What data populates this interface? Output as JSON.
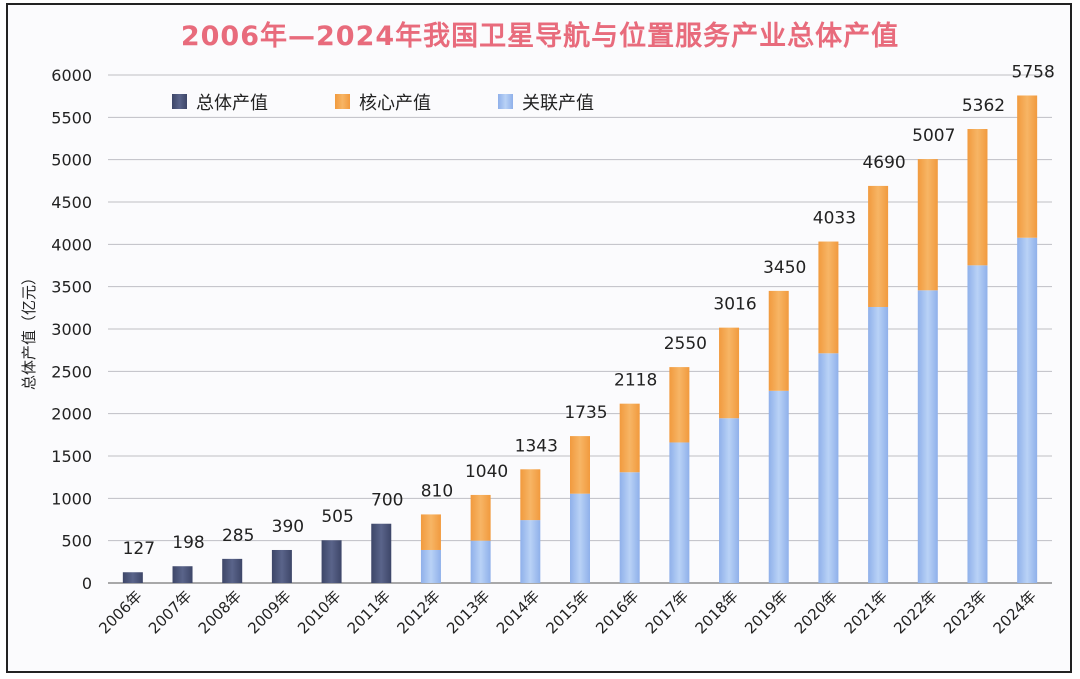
{
  "chart_data": {
    "type": "bar",
    "title": "2006年—2024年我国卫星导航与位置服务产业总体产值",
    "ylabel": "总体产值（亿元）",
    "ylim": [
      0,
      6000
    ],
    "yticks": [
      0,
      500,
      1000,
      1500,
      2000,
      2500,
      3000,
      3500,
      4000,
      4500,
      5000,
      5500,
      6000
    ],
    "grid": true,
    "legend_position": "top-left",
    "categories": [
      "2006年",
      "2007年",
      "2008年",
      "2009年",
      "2010年",
      "2011年",
      "2012年",
      "2013年",
      "2014年",
      "2015年",
      "2016年",
      "2017年",
      "2018年",
      "2019年",
      "2020年",
      "2021年",
      "2022年",
      "2023年",
      "2024年"
    ],
    "series": [
      {
        "name": "总体产值",
        "color": "#4b5578",
        "values": [
          127,
          198,
          285,
          390,
          505,
          700,
          null,
          null,
          null,
          null,
          null,
          null,
          null,
          null,
          null,
          null,
          null,
          null,
          null
        ]
      },
      {
        "name": "核心产值",
        "color": "#f3a24a",
        "values": [
          null,
          null,
          null,
          null,
          null,
          null,
          420,
          540,
          600,
          680,
          810,
          890,
          1070,
          1180,
          1320,
          1430,
          1550,
          1610,
          1680
        ]
      },
      {
        "name": "关联产值",
        "color": "#9bbbee",
        "values": [
          null,
          null,
          null,
          null,
          null,
          null,
          390,
          500,
          743,
          1055,
          1308,
          1660,
          1946,
          2270,
          2713,
          3260,
          3457,
          3752,
          4078
        ]
      }
    ],
    "totals": [
      127,
      198,
      285,
      390,
      505,
      700,
      810,
      1040,
      1343,
      1735,
      2118,
      2550,
      3016,
      3450,
      4033,
      4690,
      5007,
      5362,
      5758
    ]
  }
}
